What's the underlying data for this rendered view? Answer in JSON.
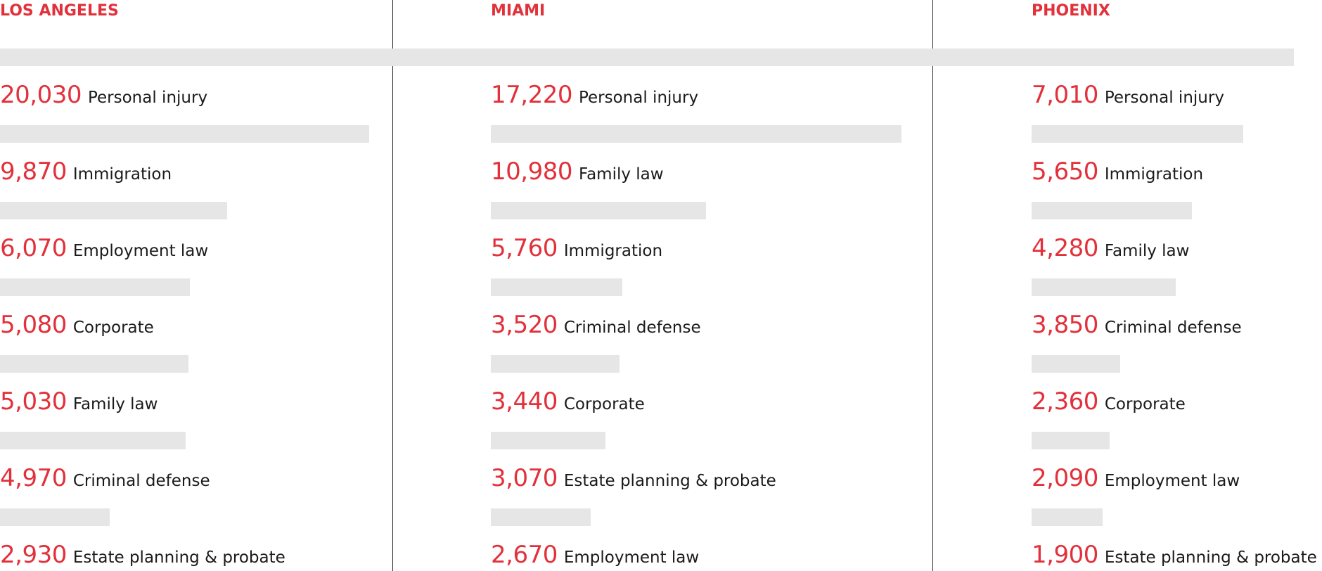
{
  "chart_data": [
    {
      "type": "bar",
      "title": "LOS ANGELES",
      "categories": [
        "Personal injury",
        "Immigration",
        "Employment law",
        "Corporate",
        "Family law",
        "Criminal defense",
        "Estate planning & probate"
      ],
      "values": [
        20030,
        9870,
        6070,
        5080,
        5030,
        4970,
        2930
      ],
      "value_labels": [
        "20,030",
        "9,870",
        "6,070",
        "5,080",
        "5,030",
        "4,970",
        "2,930"
      ],
      "xlim": [
        0,
        25000
      ],
      "grid": false,
      "colors": {
        "bar": "#e6e6e6",
        "value": "#e2313b",
        "title": "#e2313b",
        "text": "#1a1a1a"
      }
    },
    {
      "type": "bar",
      "title": "MIAMI",
      "categories": [
        "Personal injury",
        "Family law",
        "Immigration",
        "Criminal defense",
        "Corporate",
        "Estate planning & probate",
        "Employment law"
      ],
      "values": [
        17220,
        10980,
        5760,
        3520,
        3440,
        3070,
        2670
      ],
      "value_labels": [
        "17,220",
        "10,980",
        "5,760",
        "3,520",
        "3,440",
        "3,070",
        "2,670"
      ],
      "xlim": [
        0,
        25000
      ],
      "grid": false,
      "colors": {
        "bar": "#e6e6e6",
        "value": "#e2313b",
        "title": "#e2313b",
        "text": "#1a1a1a"
      }
    },
    {
      "type": "bar",
      "title": "PHOENIX",
      "categories": [
        "Personal injury",
        "Immigration",
        "Family law",
        "Criminal defense",
        "Corporate",
        "Employment law",
        "Estate planning & probate"
      ],
      "values": [
        7010,
        5650,
        4280,
        3850,
        2360,
        2090,
        1900
      ],
      "value_labels": [
        "7,010",
        "5,650",
        "4,280",
        "3,850",
        "2,360",
        "2,090",
        "1,900"
      ],
      "xlim": [
        0,
        25000
      ],
      "grid": false,
      "colors": {
        "bar": "#e6e6e6",
        "value": "#e2313b",
        "title": "#e2313b",
        "text": "#1a1a1a"
      }
    }
  ]
}
